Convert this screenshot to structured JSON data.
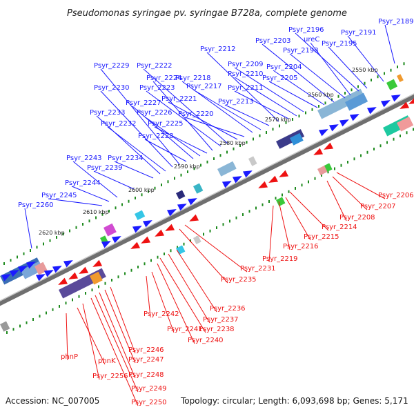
{
  "title": "Pseudomonas syringae pv. syringae B728a, complete genome",
  "footer": {
    "accession": "Accession: NC_007005",
    "topology": "Topology: circular; Length: 6,093,698 bp; Genes: 5,171"
  },
  "colors": {
    "backbone": "#7d7d7d",
    "forward": "#1a1aff",
    "reverse": "#ee1111",
    "ticks": "#1e8a1e"
  },
  "kbp_markers": [
    "2550 kbp",
    "2560 kbp",
    "2570 kbp",
    "2580 kbp",
    "2590 kbp",
    "2600 kbp",
    "2610 kbp",
    "2620 kbp"
  ],
  "forward_genes": [
    "Psyr_2189",
    "Psyr_2191",
    "Psyr_2195",
    "Psyr_2196",
    "ureC",
    "Psyr_2198",
    "Psyr_2203",
    "Psyr_2204",
    "Psyr_2205",
    "Psyr_2209",
    "Psyr_2210",
    "Psyr_2211",
    "Psyr_2212",
    "Psyr_2213",
    "Psyr_2217",
    "Psyr_2218",
    "Psyr_2220",
    "Psyr_2221",
    "Psyr_2222",
    "Psyr_2223",
    "Psyr_2224",
    "Psyr_2225",
    "Psyr_2226",
    "Psyr_2227",
    "Psyr_2228",
    "Psyr_2229",
    "Psyr_2230",
    "Psyr_2232",
    "Psyr_2233",
    "Psyr_2234",
    "Psyr_2239",
    "Psyr_2243",
    "Psyr_2244",
    "Psyr_2245",
    "Psyr_2260"
  ],
  "reverse_genes": [
    "Psyr_2206",
    "Psyr_2207",
    "Psyr_2208",
    "Psyr_2214",
    "Psyr_2215",
    "Psyr_2216",
    "Psyr_2219",
    "Psyr_2231",
    "Psyr_2235",
    "Psyr_2236",
    "Psyr_2237",
    "Psyr_2238",
    "Psyr_2240",
    "Psyr_2241",
    "Psyr_2242",
    "Psyr_2246",
    "Psyr_2247",
    "Psyr_2248",
    "Psyr_2249",
    "Psyr_2250",
    "Psyr_2256",
    "phnK",
    "phnP"
  ]
}
